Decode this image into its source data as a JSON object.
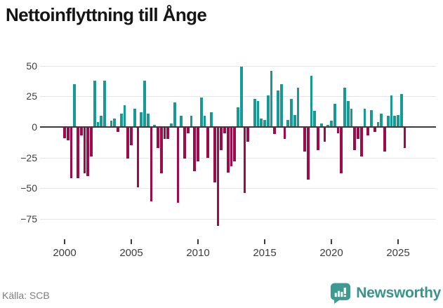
{
  "title": "Nettoinflyttning till Ånge",
  "source": "Källa: SCB",
  "branding": {
    "name": "Newsworthy",
    "icon": "newsworthy-bubble-chart-icon"
  },
  "colors": {
    "positive": "#169a96",
    "negative": "#9e0b4b",
    "zero_line": "#3b3b3b",
    "gridline": "#e4e4e4",
    "axis_text": "#3d3d3d",
    "muted_text": "#7d7d7d",
    "brand": "#38948c",
    "title_text": "#151515",
    "background": "#ffffff"
  },
  "chart_data": {
    "type": "bar",
    "title": "Nettoinflyttning till Ånge",
    "xlabel": "",
    "ylabel": "",
    "frequency": "quarterly",
    "start_period": "2000Q1",
    "end_period": "2025Q3",
    "ylim": [
      -87,
      60
    ],
    "grid": true,
    "legend": "none",
    "yticks": [
      50,
      25,
      0,
      -25,
      -50,
      -75
    ],
    "ytick_labels": [
      "50",
      "25",
      "0",
      "−25",
      "−50",
      "−75"
    ],
    "xtick_years": [
      2000,
      2005,
      2010,
      2015,
      2020,
      2025
    ],
    "xtick_labels": [
      "2000",
      "2005",
      "2010",
      "2015",
      "2020",
      "2025"
    ],
    "values": [
      -9,
      -11,
      -42,
      35,
      -42,
      -7,
      -38,
      -40,
      -24,
      38,
      4,
      9,
      38,
      0,
      5,
      7,
      -4,
      11,
      18,
      -26,
      -15,
      15,
      -49,
      12,
      38,
      11,
      -61,
      2,
      -17,
      -38,
      -10,
      -10,
      3,
      20,
      -62,
      9,
      -26,
      -5,
      9,
      -36,
      -28,
      24,
      9,
      -25,
      12,
      -45,
      -81,
      -19,
      -5,
      -37,
      -32,
      -28,
      16,
      49,
      -54,
      -12,
      0,
      23,
      21,
      7,
      6,
      26,
      46,
      -6,
      30,
      35,
      -10,
      6,
      23,
      10,
      32,
      0,
      -20,
      -43,
      42,
      13,
      -19,
      3,
      -12,
      2,
      5,
      19,
      -5,
      -38,
      32,
      21,
      15,
      -19,
      -10,
      -24,
      15,
      -7,
      14,
      -4,
      4,
      11,
      -20,
      9,
      26,
      9,
      10,
      27,
      -17
    ]
  }
}
